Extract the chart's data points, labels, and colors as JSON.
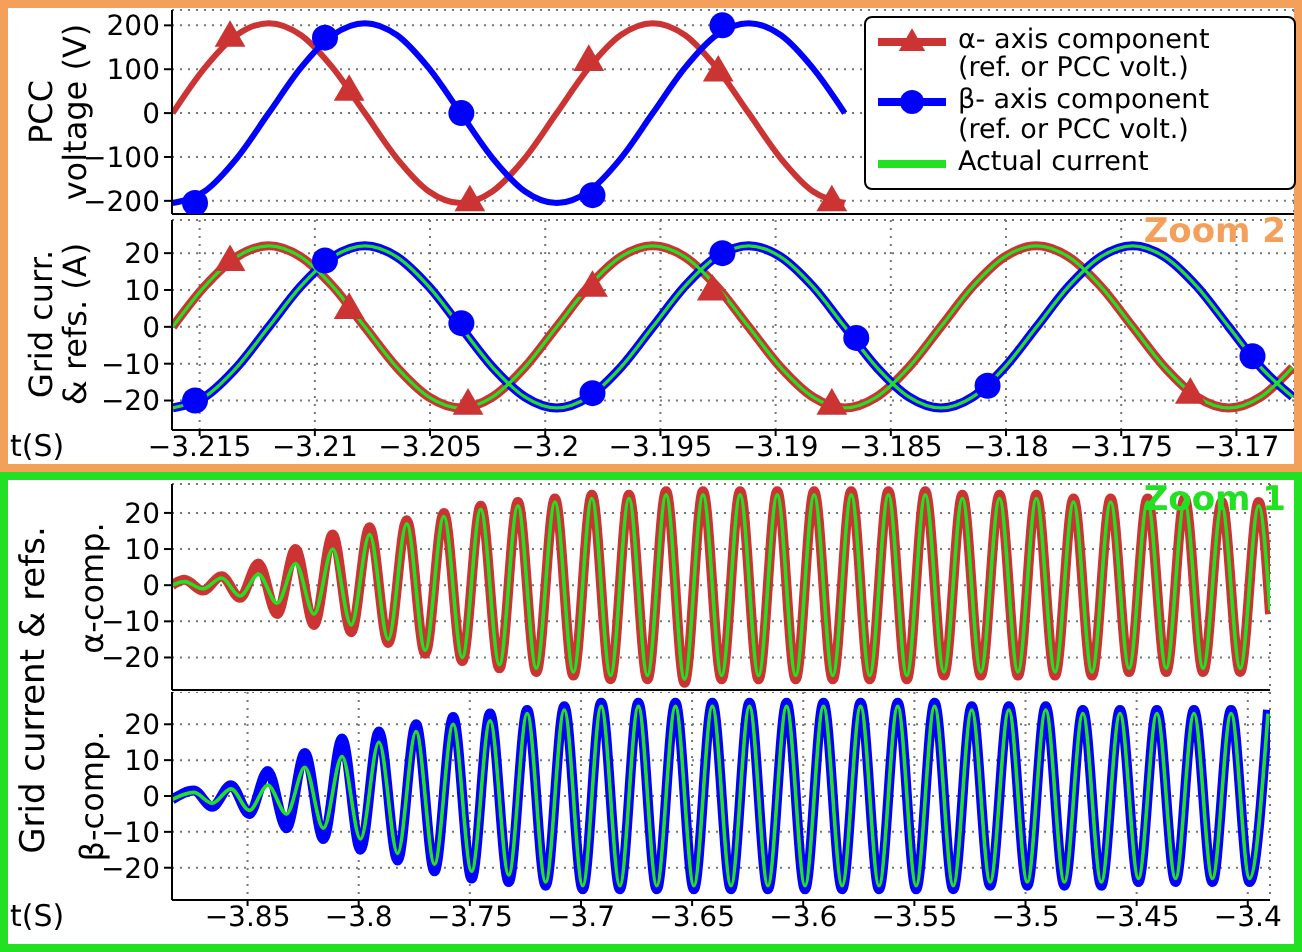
{
  "chart_data": [
    {
      "type": "line",
      "ylabel": "PCC voltage (V)",
      "xlim": [
        -3.2162,
        -3.1675
      ],
      "ylim": [
        -230,
        235
      ],
      "xticks": [
        -3.215,
        -3.21,
        -3.205,
        -3.2,
        -3.195,
        -3.19,
        -3.185,
        -3.18,
        -3.175,
        -3.17
      ],
      "yticks": [
        -200,
        -100,
        0,
        100,
        200
      ],
      "grid": true,
      "tick_labels": "y",
      "line_style": "solid",
      "series": [
        {
          "type": "line",
          "color": "#cc3333",
          "x": [
            -3.21617,
            -3.21478,
            -3.21339,
            -3.212,
            -3.21061,
            -3.20922,
            -3.20783,
            -3.20644,
            -3.20506,
            -3.20367,
            -3.20228,
            -3.20089,
            -3.1995,
            -3.19811,
            -3.19672,
            -3.19533,
            -3.19394,
            -3.19256,
            -3.19117,
            -3.18978,
            -3.18839,
            -3.187
          ],
          "values": [
            0,
            103,
            178,
            205,
            178,
            103,
            0,
            -103,
            -178,
            -205,
            -178,
            -103,
            0,
            103,
            178,
            205,
            178,
            103,
            0,
            -103,
            -178,
            -205
          ]
        },
        {
          "type": "line",
          "color": "#0000ff",
          "x": [
            -3.21617,
            -3.21478,
            -3.21339,
            -3.212,
            -3.21061,
            -3.20922,
            -3.20783,
            -3.20644,
            -3.20506,
            -3.20367,
            -3.20228,
            -3.20089,
            -3.1995,
            -3.19811,
            -3.19672,
            -3.19533,
            -3.19394,
            -3.19256,
            -3.19117,
            -3.18978,
            -3.18839,
            -3.187
          ],
          "values": [
            -205,
            -178,
            -103,
            0,
            103,
            178,
            205,
            178,
            103,
            0,
            -103,
            -178,
            -205,
            -178,
            -103,
            0,
            103,
            178,
            205,
            178,
            103,
            0
          ]
        },
        {
          "type": "scatter",
          "color": "#cc3333",
          "marker": "triangle",
          "x": [
            -3.21368,
            -3.20851,
            -3.20327,
            -3.19811,
            -3.19249,
            -3.18756
          ],
          "values": [
            175,
            52,
            -200,
            120,
            96,
            -200
          ]
        },
        {
          "type": "scatter",
          "color": "#0000ff",
          "marker": "circle",
          "x": [
            -3.2152,
            -3.20956,
            -3.20364,
            -3.19795,
            -3.19231
          ],
          "values": [
            -205,
            172,
            0,
            -187,
            200
          ]
        }
      ]
    },
    {
      "type": "line",
      "ylabel": "Grid curr. & refs. (A)",
      "xlabel": "t(S)",
      "xlim": [
        -3.2162,
        -3.1675
      ],
      "ylim": [
        -28,
        29
      ],
      "xticks": [
        -3.215,
        -3.21,
        -3.205,
        -3.2,
        -3.195,
        -3.19,
        -3.185,
        -3.18,
        -3.175,
        -3.17
      ],
      "yticks": [
        -20,
        -10,
        0,
        10,
        20
      ],
      "grid": true,
      "legend": "top right",
      "line_style": "solid",
      "annotations": [
        "Zoom 2"
      ],
      "series": [
        {
          "type": "line",
          "name": "α- axis component (ref. or PCC volt.)",
          "color": "#cc3333",
          "x": [
            -3.21617,
            -3.21478,
            -3.21339,
            -3.212,
            -3.21061,
            -3.20922,
            -3.20783,
            -3.20644,
            -3.20506,
            -3.20367,
            -3.20228,
            -3.20089,
            -3.1995,
            -3.19811,
            -3.19672,
            -3.19533,
            -3.19394,
            -3.19256,
            -3.19117,
            -3.18978,
            -3.18839,
            -3.187,
            -3.18561,
            -3.18422,
            -3.18283,
            -3.18144,
            -3.18006,
            -3.17867,
            -3.17728,
            -3.17589,
            -3.1745,
            -3.17311,
            -3.17172,
            -3.17033,
            -3.16894,
            -3.16756
          ],
          "values": [
            0,
            11,
            19,
            22,
            19,
            11,
            0,
            -11,
            -19,
            -22,
            -19,
            -11,
            0,
            11,
            19,
            22,
            19,
            11,
            0,
            -11,
            -19,
            -22,
            -19,
            -11,
            0,
            11,
            19,
            22,
            19,
            11,
            0,
            -11,
            -19,
            -22,
            -19,
            -11
          ]
        },
        {
          "type": "line",
          "name": "β- axis component (ref. or PCC volt.)",
          "color": "#0000ff",
          "x": [
            -3.21617,
            -3.21478,
            -3.21339,
            -3.212,
            -3.21061,
            -3.20922,
            -3.20783,
            -3.20644,
            -3.20506,
            -3.20367,
            -3.20228,
            -3.20089,
            -3.1995,
            -3.19811,
            -3.19672,
            -3.19533,
            -3.19394,
            -3.19256,
            -3.19117,
            -3.18978,
            -3.18839,
            -3.187,
            -3.18561,
            -3.18422,
            -3.18283,
            -3.18144,
            -3.18006,
            -3.17867,
            -3.17728,
            -3.17589,
            -3.1745,
            -3.17311,
            -3.17172,
            -3.17033,
            -3.16894,
            -3.16756
          ],
          "values": [
            -22,
            -19,
            -11,
            0,
            11,
            19,
            22,
            19,
            11,
            0,
            -11,
            -19,
            -22,
            -19,
            -11,
            0,
            11,
            19,
            22,
            19,
            11,
            0,
            -11,
            -19,
            -22,
            -19,
            -11,
            0,
            11,
            19,
            22,
            19,
            11,
            0,
            -11,
            -19
          ]
        },
        {
          "type": "line",
          "name": "Actual current",
          "color": "#22e022",
          "x": [
            -3.21617,
            -3.21478,
            -3.21339,
            -3.212,
            -3.21061,
            -3.20922,
            -3.20783,
            -3.20644,
            -3.20506,
            -3.20367,
            -3.20228,
            -3.20089,
            -3.1995,
            -3.19811,
            -3.19672,
            -3.19533,
            -3.19394,
            -3.19256,
            -3.19117,
            -3.18978,
            -3.18839,
            -3.187,
            -3.18561,
            -3.18422,
            -3.18283,
            -3.18144,
            -3.18006,
            -3.17867,
            -3.17728,
            -3.17589,
            -3.1745,
            -3.17311,
            -3.17172,
            -3.17033,
            -3.16894,
            -3.16756
          ],
          "values": [
            0,
            11,
            19,
            22,
            19,
            11,
            0,
            -11,
            -19,
            -22,
            -19,
            -11,
            0,
            11,
            19,
            22,
            19,
            11,
            0,
            -11,
            -19,
            -22,
            -19,
            -11,
            0,
            11,
            19,
            22,
            19,
            11,
            0,
            -11,
            -19,
            -22,
            -19,
            -11
          ]
        },
        {
          "type": "line",
          "color": "#22e022",
          "x": [
            -3.21617,
            -3.21478,
            -3.21339,
            -3.212,
            -3.21061,
            -3.20922,
            -3.20783,
            -3.20644,
            -3.20506,
            -3.20367,
            -3.20228,
            -3.20089,
            -3.1995,
            -3.19811,
            -3.19672,
            -3.19533,
            -3.19394,
            -3.19256,
            -3.19117,
            -3.18978,
            -3.18839,
            -3.187,
            -3.18561,
            -3.18422,
            -3.18283,
            -3.18144,
            -3.18006,
            -3.17867,
            -3.17728,
            -3.17589,
            -3.1745,
            -3.17311,
            -3.17172,
            -3.17033,
            -3.16894,
            -3.16756
          ],
          "values": [
            -22,
            -19,
            -11,
            0,
            11,
            19,
            22,
            19,
            11,
            0,
            -11,
            -19,
            -22,
            -19,
            -11,
            0,
            11,
            19,
            22,
            19,
            11,
            0,
            -11,
            -19,
            -22,
            -19,
            -11,
            0,
            11,
            19,
            22,
            19,
            11,
            0,
            -11,
            -19
          ]
        },
        {
          "type": "scatter",
          "color": "#cc3333",
          "marker": "triangle",
          "x": [
            -3.21368,
            -3.20851,
            -3.20335,
            -3.19795,
            -3.19275,
            -3.18756,
            -3.172
          ],
          "values": [
            18,
            5,
            -21,
            11,
            10,
            -21,
            -18
          ]
        },
        {
          "type": "scatter",
          "color": "#0000ff",
          "marker": "circle",
          "x": [
            -3.2152,
            -3.20956,
            -3.20364,
            -3.19795,
            -3.19231,
            -3.1865,
            -3.1808,
            -3.1693
          ],
          "values": [
            -20,
            18,
            1,
            -18,
            20,
            -3,
            -16,
            -8
          ]
        }
      ]
    },
    {
      "type": "line",
      "ylabel": "α-comp.",
      "xlim": [
        -3.884,
        -3.39
      ],
      "ylim": [
        -29,
        28
      ],
      "xticks": [
        -3.85,
        -3.8,
        -3.75,
        -3.7,
        -3.65,
        -3.6,
        -3.55,
        -3.5,
        -3.45,
        -3.4
      ],
      "yticks": [
        -20,
        -10,
        0,
        10,
        20
      ],
      "grid": true,
      "tick_labels": "y",
      "line_style": "solid",
      "annotations": [
        "Zoom 1",
        "Grid current & refs."
      ],
      "series": [
        {
          "type": "line",
          "color": "#cc3333",
          "x": [
            -3.884,
            -3.8784,
            -3.8701,
            -3.8617,
            -3.8534,
            -3.8451,
            -3.8367,
            -3.8284,
            -3.8201,
            -3.8117,
            -3.8034,
            -3.7951,
            -3.7867,
            -3.7784,
            -3.7701,
            -3.7617,
            -3.7534,
            -3.7451,
            -3.7367,
            -3.7284,
            -3.7201,
            -3.7117,
            -3.7034,
            -3.6951,
            -3.6867,
            -3.6784,
            -3.6701,
            -3.6617,
            -3.6534,
            -3.6451,
            -3.6367,
            -3.6284,
            -3.6201,
            -3.6117,
            -3.6034,
            -3.5951,
            -3.5867,
            -3.5784,
            -3.5701,
            -3.5617,
            -3.5534,
            -3.5451,
            -3.5367,
            -3.5284,
            -3.5201,
            -3.5117,
            -3.5034,
            -3.4951,
            -3.4867,
            -3.4784,
            -3.4701,
            -3.4617,
            -3.4534,
            -3.4451,
            -3.4367,
            -3.4284,
            -3.4201,
            -3.4117,
            -3.4034,
            -3.3951,
            -3.39
          ],
          "values": [
            0,
            1.5,
            -1.5,
            2.5,
            -3.5,
            6,
            -8,
            10,
            -11,
            14,
            -13,
            16,
            -16,
            18,
            -19,
            20,
            -21,
            22,
            -23,
            23,
            -24,
            24,
            -25,
            25,
            -26,
            25,
            -26,
            26,
            -27,
            26,
            -26,
            26,
            -26,
            26,
            -26,
            26,
            -26,
            26,
            -26,
            26,
            -26,
            26,
            -25,
            25,
            -25,
            25,
            -25,
            25,
            -25,
            24,
            -25,
            24,
            -24,
            24,
            -24,
            24,
            -24,
            23,
            -24,
            23,
            -8
          ]
        },
        {
          "type": "line",
          "color": "#22e022",
          "x": [
            -3.884,
            -3.8784,
            -3.8701,
            -3.8617,
            -3.8534,
            -3.8451,
            -3.8367,
            -3.8284,
            -3.8201,
            -3.8117,
            -3.8034,
            -3.7951,
            -3.7867,
            -3.7784,
            -3.7701,
            -3.7617,
            -3.7534,
            -3.7451,
            -3.7367,
            -3.7284,
            -3.7201,
            -3.7117,
            -3.7034,
            -3.6951,
            -3.6867,
            -3.6784,
            -3.6701,
            -3.6617,
            -3.6534,
            -3.6451,
            -3.6367,
            -3.6284,
            -3.6201,
            -3.6117,
            -3.6034,
            -3.5951,
            -3.5867,
            -3.5784,
            -3.5701,
            -3.5617,
            -3.5534,
            -3.5451,
            -3.5367,
            -3.5284,
            -3.5201,
            -3.5117,
            -3.5034,
            -3.4951,
            -3.4867,
            -3.4784,
            -3.4701,
            -3.4617,
            -3.4534,
            -3.4451,
            -3.4367,
            -3.4284,
            -3.4201,
            -3.4117,
            -3.4034,
            -3.3951,
            -3.39
          ],
          "values": [
            0,
            1,
            -1,
            2,
            -3,
            3,
            -5,
            6,
            -8,
            10,
            -11,
            14,
            -15,
            17,
            -18,
            19,
            -20,
            21,
            -22,
            22,
            -23,
            23,
            -24,
            24,
            -25,
            24,
            -25,
            25,
            -26,
            25,
            -25,
            25,
            -25,
            25,
            -25,
            25,
            -25,
            25,
            -25,
            25,
            -25,
            25,
            -24,
            24,
            -24,
            24,
            -24,
            24,
            -24,
            23,
            -24,
            23,
            -23,
            23,
            -23,
            23,
            -23,
            22,
            -23,
            22,
            -7
          ]
        }
      ]
    },
    {
      "type": "line",
      "ylabel": "β-comp.",
      "xlabel": "t(S)",
      "xlim": [
        -3.884,
        -3.39
      ],
      "ylim": [
        -29,
        29
      ],
      "xticks": [
        -3.85,
        -3.8,
        -3.75,
        -3.7,
        -3.65,
        -3.6,
        -3.55,
        -3.5,
        -3.45,
        -3.4
      ],
      "yticks": [
        -20,
        -10,
        0,
        10,
        20
      ],
      "grid": true,
      "line_style": "solid",
      "series": [
        {
          "type": "line",
          "color": "#0000ff",
          "x": [
            -3.884,
            -3.8742,
            -3.8659,
            -3.8575,
            -3.8492,
            -3.8409,
            -3.8325,
            -3.8242,
            -3.8159,
            -3.8075,
            -3.7992,
            -3.7909,
            -3.7825,
            -3.7742,
            -3.7659,
            -3.7575,
            -3.7492,
            -3.7409,
            -3.7325,
            -3.7242,
            -3.7159,
            -3.7075,
            -3.6992,
            -3.6909,
            -3.6825,
            -3.6742,
            -3.6659,
            -3.6575,
            -3.6492,
            -3.6409,
            -3.6325,
            -3.6242,
            -3.6159,
            -3.6075,
            -3.5992,
            -3.5909,
            -3.5825,
            -3.5742,
            -3.5659,
            -3.5575,
            -3.5492,
            -3.5409,
            -3.5325,
            -3.5242,
            -3.5159,
            -3.5075,
            -3.4992,
            -3.4909,
            -3.4825,
            -3.4742,
            -3.4659,
            -3.4575,
            -3.4492,
            -3.4409,
            -3.4325,
            -3.4242,
            -3.4159,
            -3.4075,
            -3.3992,
            -3.3909
          ],
          "values": [
            -1,
            1.5,
            -3,
            3,
            -5,
            7,
            -9,
            12,
            -12,
            16,
            -15,
            18,
            -18,
            20,
            -21,
            22,
            -23,
            23,
            -24,
            24,
            -25,
            25,
            -26,
            26,
            -26,
            26,
            -26,
            26,
            -26,
            26,
            -26,
            26,
            -26,
            26,
            -26,
            26,
            -26,
            26,
            -26,
            26,
            -26,
            26,
            -26,
            25,
            -25,
            25,
            -25,
            25,
            -25,
            24,
            -25,
            24,
            -24,
            24,
            -24,
            24,
            -24,
            24,
            -24,
            24
          ]
        },
        {
          "type": "line",
          "color": "#22e022",
          "x": [
            -3.884,
            -3.8742,
            -3.8659,
            -3.8575,
            -3.8492,
            -3.8409,
            -3.8325,
            -3.8242,
            -3.8159,
            -3.8075,
            -3.7992,
            -3.7909,
            -3.7825,
            -3.7742,
            -3.7659,
            -3.7575,
            -3.7492,
            -3.7409,
            -3.7325,
            -3.7242,
            -3.7159,
            -3.7075,
            -3.6992,
            -3.6909,
            -3.6825,
            -3.6742,
            -3.6659,
            -3.6575,
            -3.6492,
            -3.6409,
            -3.6325,
            -3.6242,
            -3.6159,
            -3.6075,
            -3.5992,
            -3.5909,
            -3.5825,
            -3.5742,
            -3.5659,
            -3.5575,
            -3.5492,
            -3.5409,
            -3.5325,
            -3.5242,
            -3.5159,
            -3.5075,
            -3.4992,
            -3.4909,
            -3.4825,
            -3.4742,
            -3.4659,
            -3.4575,
            -3.4492,
            -3.4409,
            -3.4325,
            -3.4242,
            -3.4159,
            -3.4075,
            -3.3992,
            -3.3909
          ],
          "values": [
            -1,
            1,
            -2,
            2,
            -4,
            3,
            -5,
            8,
            -9,
            11,
            -12,
            15,
            -16,
            18,
            -19,
            20,
            -21,
            21,
            -22,
            23,
            -24,
            24,
            -25,
            25,
            -25,
            25,
            -25,
            25,
            -25,
            25,
            -25,
            25,
            -25,
            25,
            -25,
            25,
            -25,
            25,
            -25,
            25,
            -25,
            25,
            -25,
            24,
            -24,
            24,
            -24,
            24,
            -24,
            23,
            -24,
            23,
            -23,
            23,
            -23,
            23,
            -23,
            23,
            -23,
            23
          ]
        }
      ]
    }
  ]
}
